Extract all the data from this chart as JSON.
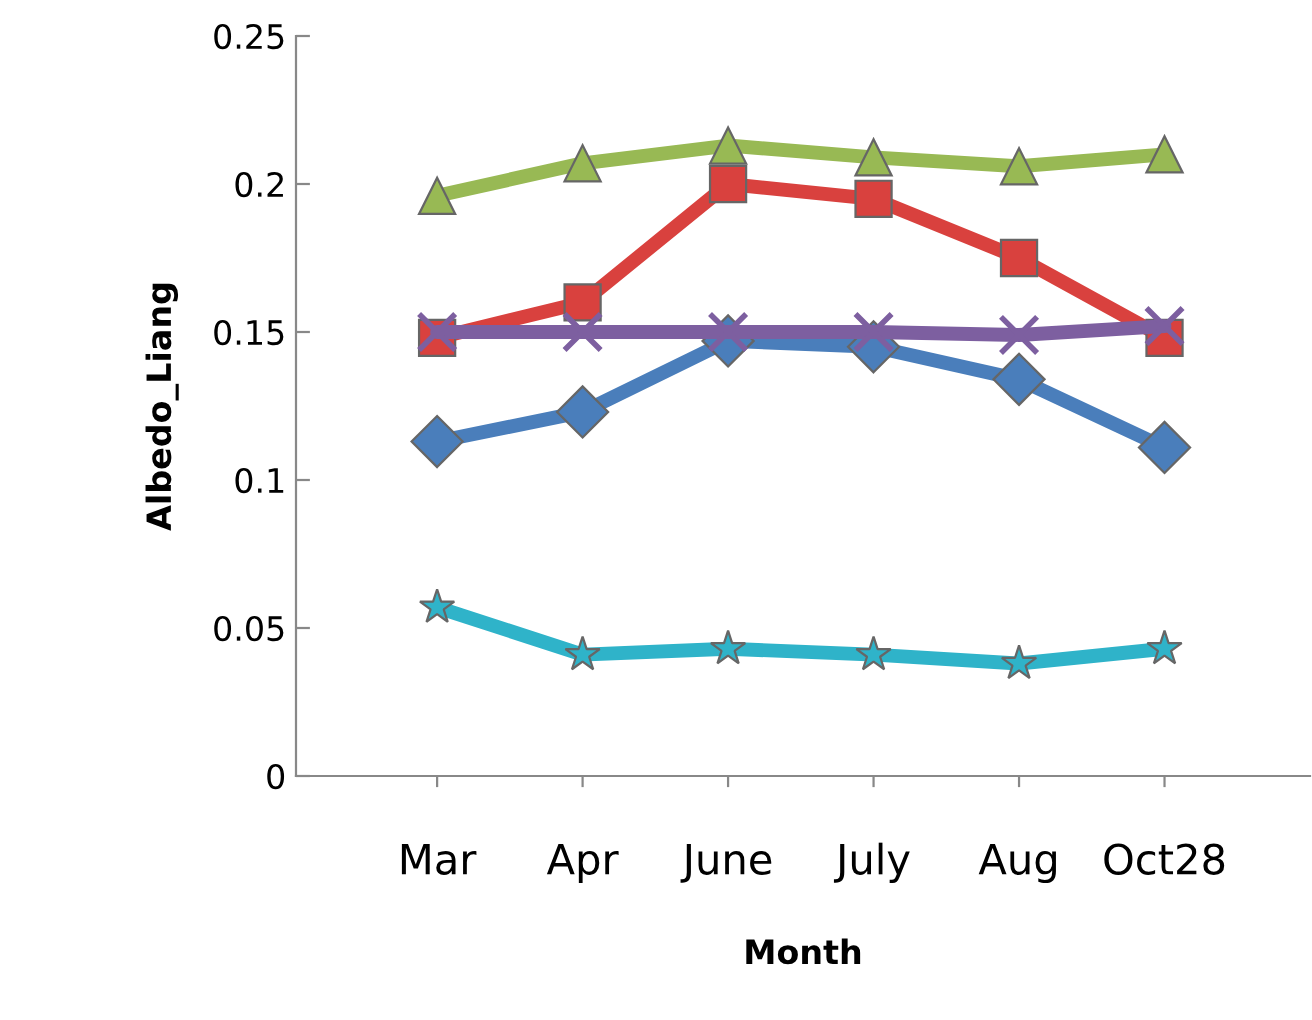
{
  "chart_data": {
    "type": "line",
    "xlabel": "Month",
    "ylabel": "Albedo_Liang",
    "categories": [
      "Mar",
      "Apr",
      "June",
      "July",
      "Aug",
      "Oct28"
    ],
    "ylim": [
      0,
      0.25
    ],
    "yticks": [
      0,
      {
        "value": 0.05,
        "label": "0.05"
      },
      {
        "value": 0.1,
        "label": "0.1"
      },
      {
        "value": 0.15,
        "label": "0.15"
      },
      {
        "value": 0.2,
        "label": "0.2"
      },
      {
        "value": 0.25,
        "label": "0.25"
      }
    ],
    "grid": false,
    "legend": false,
    "line_style": "solid",
    "series": [
      {
        "color": "#4a7ebb",
        "marker": "diamond",
        "values": [
          0.113,
          0.123,
          0.147,
          0.145,
          0.134,
          0.111
        ]
      },
      {
        "color": "#d9413e",
        "marker": "square",
        "values": [
          0.148,
          0.16,
          0.2,
          0.195,
          0.175,
          0.148
        ]
      },
      {
        "color": "#98b954",
        "marker": "triangle",
        "values": [
          0.196,
          0.207,
          0.213,
          0.209,
          0.206,
          0.21
        ]
      },
      {
        "color": "#7d5fa0",
        "marker": "cross",
        "values": [
          0.15,
          0.15,
          0.15,
          0.15,
          0.149,
          0.152
        ]
      },
      {
        "color": "#2fb3c9",
        "marker": "star",
        "values": [
          0.057,
          0.041,
          0.043,
          0.041,
          0.038,
          0.043
        ]
      }
    ]
  }
}
